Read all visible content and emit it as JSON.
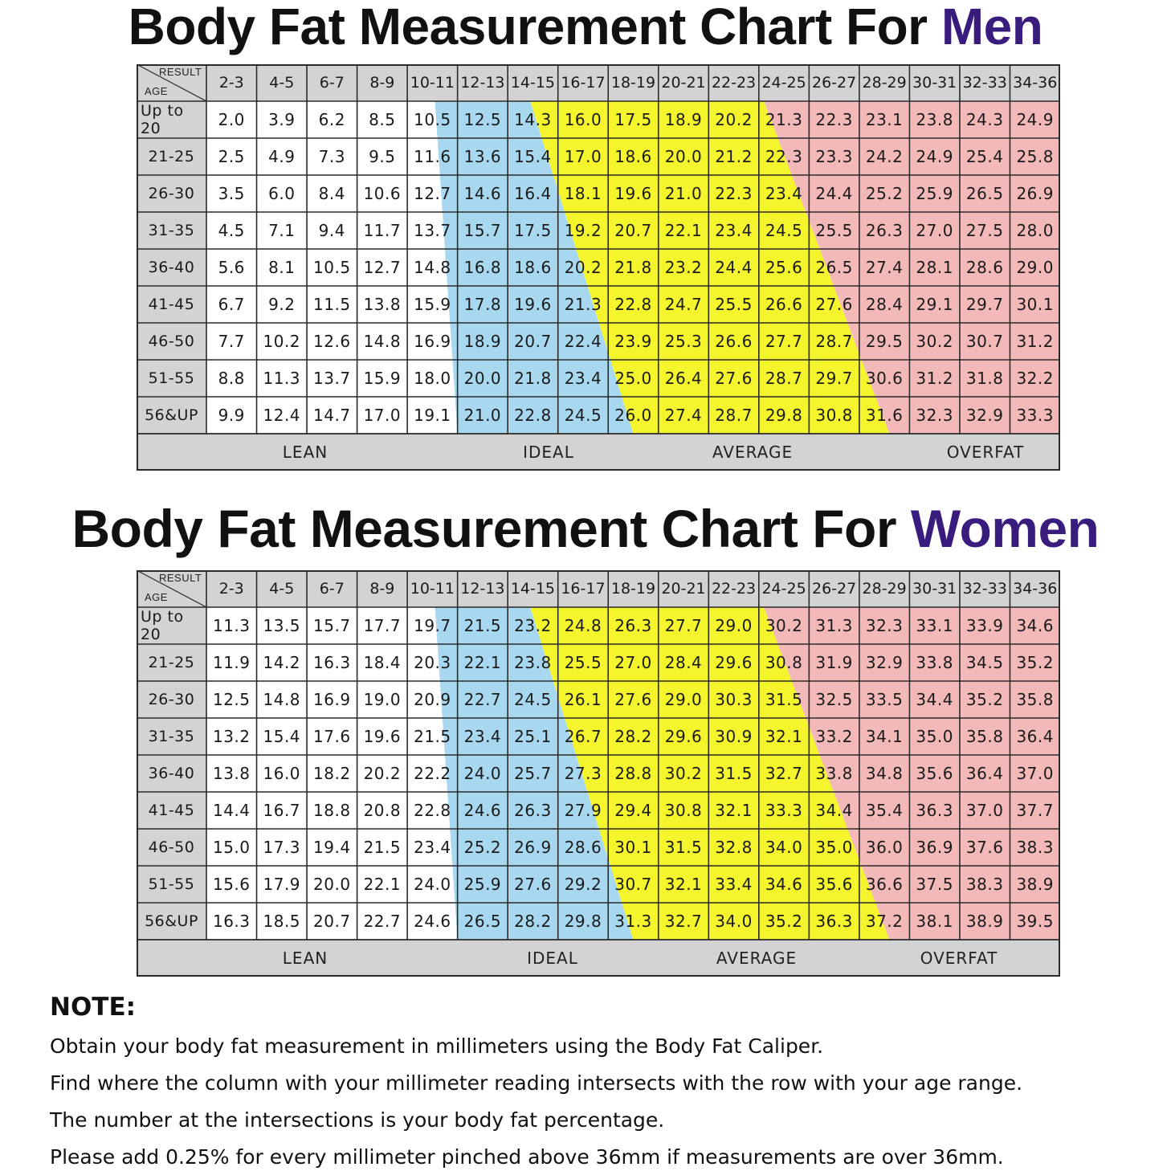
{
  "men": {
    "title_prefix": "Body Fat Measurement Chart For ",
    "title_accent": "Men",
    "corner_result": "RESULT",
    "corner_age": "AGE",
    "columns": [
      "2-3",
      "4-5",
      "6-7",
      "8-9",
      "10-11",
      "12-13",
      "14-15",
      "16-17",
      "18-19",
      "20-21",
      "22-23",
      "24-25",
      "26-27",
      "28-29",
      "30-31",
      "32-33",
      "34-36"
    ],
    "rows": [
      {
        "age": "Up to 20",
        "values": [
          "2.0",
          "3.9",
          "6.2",
          "8.5",
          "10.5",
          "12.5",
          "14.3",
          "16.0",
          "17.5",
          "18.9",
          "20.2",
          "21.3",
          "22.3",
          "23.1",
          "23.8",
          "24.3",
          "24.9"
        ]
      },
      {
        "age": "21-25",
        "values": [
          "2.5",
          "4.9",
          "7.3",
          "9.5",
          "11.6",
          "13.6",
          "15.4",
          "17.0",
          "18.6",
          "20.0",
          "21.2",
          "22.3",
          "23.3",
          "24.2",
          "24.9",
          "25.4",
          "25.8"
        ]
      },
      {
        "age": "26-30",
        "values": [
          "3.5",
          "6.0",
          "8.4",
          "10.6",
          "12.7",
          "14.6",
          "16.4",
          "18.1",
          "19.6",
          "21.0",
          "22.3",
          "23.4",
          "24.4",
          "25.2",
          "25.9",
          "26.5",
          "26.9"
        ]
      },
      {
        "age": "31-35",
        "values": [
          "4.5",
          "7.1",
          "9.4",
          "11.7",
          "13.7",
          "15.7",
          "17.5",
          "19.2",
          "20.7",
          "22.1",
          "23.4",
          "24.5",
          "25.5",
          "26.3",
          "27.0",
          "27.5",
          "28.0"
        ]
      },
      {
        "age": "36-40",
        "values": [
          "5.6",
          "8.1",
          "10.5",
          "12.7",
          "14.8",
          "16.8",
          "18.6",
          "20.2",
          "21.8",
          "23.2",
          "24.4",
          "25.6",
          "26.5",
          "27.4",
          "28.1",
          "28.6",
          "29.0"
        ]
      },
      {
        "age": "41-45",
        "values": [
          "6.7",
          "9.2",
          "11.5",
          "13.8",
          "15.9",
          "17.8",
          "19.6",
          "21.3",
          "22.8",
          "24.7",
          "25.5",
          "26.6",
          "27.6",
          "28.4",
          "29.1",
          "29.7",
          "30.1"
        ]
      },
      {
        "age": "46-50",
        "values": [
          "7.7",
          "10.2",
          "12.6",
          "14.8",
          "16.9",
          "18.9",
          "20.7",
          "22.4",
          "23.9",
          "25.3",
          "26.6",
          "27.7",
          "28.7",
          "29.5",
          "30.2",
          "30.7",
          "31.2"
        ]
      },
      {
        "age": "51-55",
        "values": [
          "8.8",
          "11.3",
          "13.7",
          "15.9",
          "18.0",
          "20.0",
          "21.8",
          "23.4",
          "25.0",
          "26.4",
          "27.6",
          "28.7",
          "29.7",
          "30.6",
          "31.2",
          "31.8",
          "32.2"
        ]
      },
      {
        "age": "56&UP",
        "values": [
          "9.9",
          "12.4",
          "14.7",
          "17.0",
          "19.1",
          "21.0",
          "22.8",
          "24.5",
          "26.0",
          "27.4",
          "28.7",
          "29.8",
          "30.8",
          "31.6",
          "32.3",
          "32.9",
          "33.3"
        ]
      }
    ],
    "categories": [
      "LEAN",
      "IDEAL",
      "AVERAGE",
      "OVERFAT"
    ]
  },
  "women": {
    "title_prefix": "Body Fat Measurement Chart For ",
    "title_accent": "Women",
    "corner_result": "RESULT",
    "corner_age": "AGE",
    "columns": [
      "2-3",
      "4-5",
      "6-7",
      "8-9",
      "10-11",
      "12-13",
      "14-15",
      "16-17",
      "18-19",
      "20-21",
      "22-23",
      "24-25",
      "26-27",
      "28-29",
      "30-31",
      "32-33",
      "34-36"
    ],
    "rows": [
      {
        "age": "Up to 20",
        "values": [
          "11.3",
          "13.5",
          "15.7",
          "17.7",
          "19.7",
          "21.5",
          "23.2",
          "24.8",
          "26.3",
          "27.7",
          "29.0",
          "30.2",
          "31.3",
          "32.3",
          "33.1",
          "33.9",
          "34.6"
        ]
      },
      {
        "age": "21-25",
        "values": [
          "11.9",
          "14.2",
          "16.3",
          "18.4",
          "20.3",
          "22.1",
          "23.8",
          "25.5",
          "27.0",
          "28.4",
          "29.6",
          "30.8",
          "31.9",
          "32.9",
          "33.8",
          "34.5",
          "35.2"
        ]
      },
      {
        "age": "26-30",
        "values": [
          "12.5",
          "14.8",
          "16.9",
          "19.0",
          "20.9",
          "22.7",
          "24.5",
          "26.1",
          "27.6",
          "29.0",
          "30.3",
          "31.5",
          "32.5",
          "33.5",
          "34.4",
          "35.2",
          "35.8"
        ]
      },
      {
        "age": "31-35",
        "values": [
          "13.2",
          "15.4",
          "17.6",
          "19.6",
          "21.5",
          "23.4",
          "25.1",
          "26.7",
          "28.2",
          "29.6",
          "30.9",
          "32.1",
          "33.2",
          "34.1",
          "35.0",
          "35.8",
          "36.4"
        ]
      },
      {
        "age": "36-40",
        "values": [
          "13.8",
          "16.0",
          "18.2",
          "20.2",
          "22.2",
          "24.0",
          "25.7",
          "27.3",
          "28.8",
          "30.2",
          "31.5",
          "32.7",
          "33.8",
          "34.8",
          "35.6",
          "36.4",
          "37.0"
        ]
      },
      {
        "age": "41-45",
        "values": [
          "14.4",
          "16.7",
          "18.8",
          "20.8",
          "22.8",
          "24.6",
          "26.3",
          "27.9",
          "29.4",
          "30.8",
          "32.1",
          "33.3",
          "34.4",
          "35.4",
          "36.3",
          "37.0",
          "37.7"
        ]
      },
      {
        "age": "46-50",
        "values": [
          "15.0",
          "17.3",
          "19.4",
          "21.5",
          "23.4",
          "25.2",
          "26.9",
          "28.6",
          "30.1",
          "31.5",
          "32.8",
          "34.0",
          "35.0",
          "36.0",
          "36.9",
          "37.6",
          "38.3"
        ]
      },
      {
        "age": "51-55",
        "values": [
          "15.6",
          "17.9",
          "20.0",
          "22.1",
          "24.0",
          "25.9",
          "27.6",
          "29.2",
          "30.7",
          "32.1",
          "33.4",
          "34.6",
          "35.6",
          "36.6",
          "37.5",
          "38.3",
          "38.9"
        ]
      },
      {
        "age": "56&UP",
        "values": [
          "16.3",
          "18.5",
          "20.7",
          "22.7",
          "24.6",
          "26.5",
          "28.2",
          "29.8",
          "31.3",
          "32.7",
          "34.0",
          "35.2",
          "36.3",
          "37.2",
          "38.1",
          "38.9",
          "39.5"
        ]
      }
    ],
    "categories": [
      "LEAN",
      "IDEAL",
      "AVERAGE",
      "OVERFAT"
    ]
  },
  "colors": {
    "accent": "#3a1c7e",
    "lean": "#ffffff",
    "ideal": "#a8d8f0",
    "average": "#f5f52e",
    "overfat": "#f3b9b9",
    "header_gray": "#d3d3d3",
    "grid": "#2a2a2a"
  },
  "note": {
    "title": "NOTE",
    "lines": [
      "Obtain your body fat measurement in millimeters using the Body Fat Caliper.",
      "Find where the column with your millimeter reading intersects with the row with your age range.",
      "The number at the intersections is your body fat percentage.",
      "Please add 0.25% for every millimeter pinched above 36mm if measurements are over 36mm."
    ]
  }
}
